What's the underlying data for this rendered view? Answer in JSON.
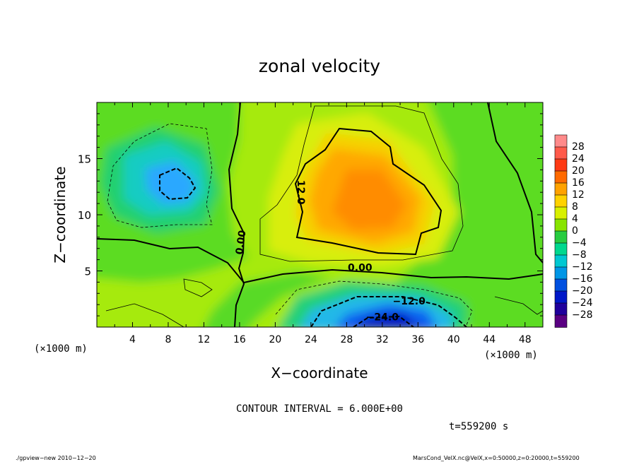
{
  "chart_data": {
    "type": "heatmap",
    "title": "zonal velocity",
    "xlabel": "X−coordinate",
    "ylabel": "Z−coordinate",
    "x_unit_label": "(×1000 m)",
    "y_unit_label": "(×1000 m)",
    "xlim": [
      0,
      50
    ],
    "ylim": [
      0,
      20
    ],
    "x_ticks": [
      "4",
      "8",
      "12",
      "16",
      "20",
      "24",
      "28",
      "32",
      "36",
      "40",
      "44",
      "48"
    ],
    "y_ticks": [
      "5",
      "10",
      "15"
    ],
    "x_tick_values": [
      4,
      8,
      12,
      16,
      20,
      24,
      28,
      32,
      36,
      40,
      44,
      48
    ],
    "y_tick_values": [
      5,
      10,
      15
    ],
    "contour_interval_text": "CONTOUR INTERVAL = 6.000E+00",
    "time_text": "t=559200 s",
    "contour_labels": [
      {
        "text": "12.0",
        "x": 22.5,
        "y": 12.0
      },
      {
        "text": "0.00",
        "x": 16.5,
        "y": 7.5
      },
      {
        "text": "0.00",
        "x": 29.5,
        "y": 5.0
      },
      {
        "text": "−12.0",
        "x": 35.0,
        "y": 2.0
      },
      {
        "text": "−24.0",
        "x": 32.0,
        "y": 0.6
      }
    ],
    "features": [
      {
        "kind": "max",
        "x": 29,
        "z": 12,
        "value": 18
      },
      {
        "kind": "min",
        "x": 9,
        "z": 13,
        "value": -11
      },
      {
        "kind": "min",
        "x": 31,
        "z": 0.5,
        "value": -26
      }
    ],
    "colorbar": {
      "labels": [
        "28",
        "24",
        "20",
        "16",
        "12",
        "8",
        "4",
        "0",
        "−4",
        "−8",
        "−12",
        "−16",
        "−20",
        "−24",
        "−28"
      ],
      "colors": [
        "#ff8a8a",
        "#ff5a4a",
        "#ff3a14",
        "#ff6a00",
        "#ffa200",
        "#ffd200",
        "#d8f000",
        "#88e400",
        "#28cc40",
        "#00d88e",
        "#00c8d2",
        "#0096e6",
        "#0050e0",
        "#0018c8",
        "#20009c",
        "#5a0082"
      ]
    }
  },
  "footer": {
    "left": "./gpview−new  2010−12−20",
    "right": "MarsCond_VelX.nc@VelX,x=0:50000,z=0:20000,t=559200"
  }
}
